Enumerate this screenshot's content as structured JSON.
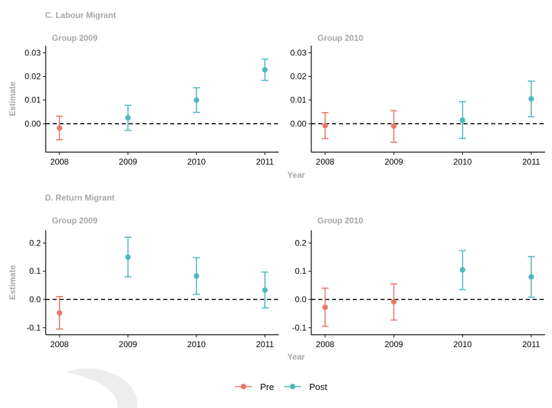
{
  "colors": {
    "pre": "#e8776c",
    "post": "#4fb8c1",
    "axis": "#000000",
    "title": "#a6a6a6"
  },
  "legend": {
    "position": "bottom",
    "items": [
      {
        "key": "pre",
        "label": "Pre"
      },
      {
        "key": "post",
        "label": "Post"
      }
    ]
  },
  "chart_data": [
    {
      "type": "scatter",
      "section": "C. Labour Migrant",
      "title": "Group 2009",
      "ylabel": "Estimate",
      "xlabel": "",
      "categories": [
        "2008",
        "2009",
        "2010",
        "2011"
      ],
      "ylim": [
        -0.012,
        0.033
      ],
      "yticks": [
        0.0,
        0.01,
        0.02,
        0.03
      ],
      "ytick_labels": [
        "0.00",
        "0.01",
        "0.02",
        "0.03"
      ],
      "reference_line": 0,
      "points": [
        {
          "x": "2008",
          "y": -0.0018,
          "lo": -0.0068,
          "hi": 0.0032,
          "group": "pre"
        },
        {
          "x": "2009",
          "y": 0.0025,
          "lo": -0.0028,
          "hi": 0.0078,
          "group": "post"
        },
        {
          "x": "2010",
          "y": 0.01,
          "lo": 0.0048,
          "hi": 0.0152,
          "group": "post"
        },
        {
          "x": "2011",
          "y": 0.0228,
          "lo": 0.0183,
          "hi": 0.0273,
          "group": "post"
        }
      ]
    },
    {
      "type": "scatter",
      "section": "",
      "title": "Group 2010",
      "ylabel": "",
      "xlabel": "Year",
      "categories": [
        "2008",
        "2009",
        "2010",
        "2011"
      ],
      "ylim": [
        -0.012,
        0.033
      ],
      "yticks": [
        0.0,
        0.01,
        0.02,
        0.03
      ],
      "ytick_labels": [
        "0.00",
        "0.01",
        "0.02",
        "0.03"
      ],
      "reference_line": 0,
      "points": [
        {
          "x": "2008",
          "y": -0.0008,
          "lo": -0.0063,
          "hi": 0.0047,
          "group": "pre"
        },
        {
          "x": "2009",
          "y": -0.001,
          "lo": -0.0078,
          "hi": 0.0055,
          "group": "pre"
        },
        {
          "x": "2010",
          "y": 0.0015,
          "lo": -0.0062,
          "hi": 0.0093,
          "group": "post"
        },
        {
          "x": "2011",
          "y": 0.0105,
          "lo": 0.003,
          "hi": 0.018,
          "group": "post"
        }
      ]
    },
    {
      "type": "scatter",
      "section": "D. Return Migrant",
      "title": "Group 2009",
      "ylabel": "Estimate",
      "xlabel": "",
      "categories": [
        "2008",
        "2009",
        "2010",
        "2011"
      ],
      "ylim": [
        -0.125,
        0.245
      ],
      "yticks": [
        -0.1,
        0.0,
        0.1,
        0.2
      ],
      "ytick_labels": [
        "-0.1",
        "0.0",
        "0.1",
        "0.2"
      ],
      "reference_line": 0,
      "points": [
        {
          "x": "2008",
          "y": -0.048,
          "lo": -0.105,
          "hi": 0.01,
          "group": "pre"
        },
        {
          "x": "2009",
          "y": 0.15,
          "lo": 0.08,
          "hi": 0.22,
          "group": "post"
        },
        {
          "x": "2010",
          "y": 0.083,
          "lo": 0.018,
          "hi": 0.148,
          "group": "post"
        },
        {
          "x": "2011",
          "y": 0.033,
          "lo": -0.03,
          "hi": 0.097,
          "group": "post"
        }
      ]
    },
    {
      "type": "scatter",
      "section": "",
      "title": "Group 2010",
      "ylabel": "",
      "xlabel": "Year",
      "categories": [
        "2008",
        "2009",
        "2010",
        "2011"
      ],
      "ylim": [
        -0.125,
        0.245
      ],
      "yticks": [
        -0.1,
        0.0,
        0.1,
        0.2
      ],
      "ytick_labels": [
        "-0.1",
        "0.0",
        "0.1",
        "0.2"
      ],
      "reference_line": 0,
      "points": [
        {
          "x": "2008",
          "y": -0.028,
          "lo": -0.095,
          "hi": 0.04,
          "group": "pre"
        },
        {
          "x": "2009",
          "y": -0.008,
          "lo": -0.073,
          "hi": 0.055,
          "group": "pre"
        },
        {
          "x": "2010",
          "y": 0.105,
          "lo": 0.035,
          "hi": 0.173,
          "group": "post"
        },
        {
          "x": "2011",
          "y": 0.08,
          "lo": 0.008,
          "hi": 0.152,
          "group": "post"
        }
      ]
    }
  ]
}
